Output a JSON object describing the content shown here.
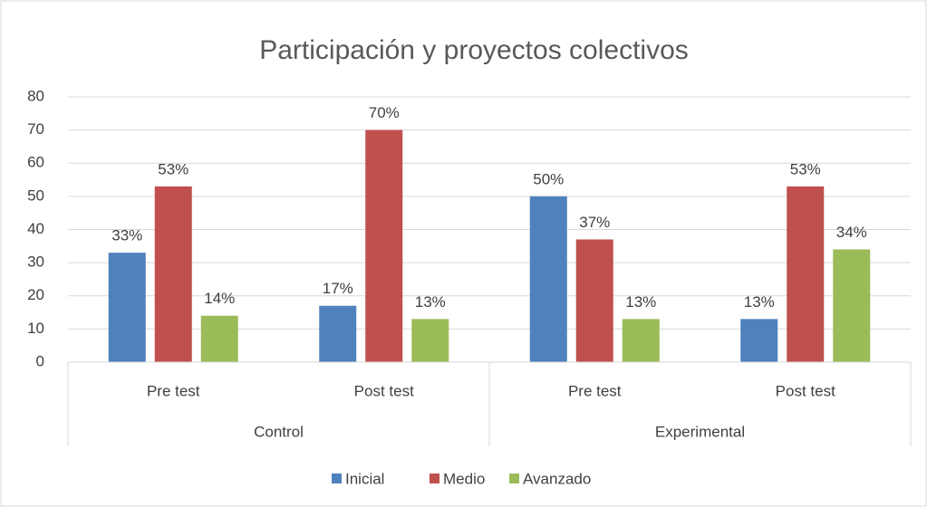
{
  "chart_data": {
    "type": "bar",
    "title": "Participación y proyectos colectivos",
    "categories": [
      "Pre test",
      "Post test",
      "Pre test",
      "Post test"
    ],
    "groups": [
      "Control",
      "Experimental"
    ],
    "series": [
      {
        "name": "Inicial",
        "color": "#4f81bd",
        "values": [
          33,
          17,
          50,
          13
        ],
        "value_labels": [
          "33%",
          "17%",
          "50%",
          "13%"
        ]
      },
      {
        "name": "Medio",
        "color": "#c0504d",
        "values": [
          53,
          70,
          37,
          53
        ],
        "value_labels": [
          "53%",
          "70%",
          "37%",
          "53%"
        ]
      },
      {
        "name": "Avanzado",
        "color": "#9bbb59",
        "values": [
          14,
          13,
          13,
          34
        ],
        "value_labels": [
          "14%",
          "13%",
          "13%",
          "34%"
        ]
      }
    ],
    "ylim": [
      0,
      80
    ],
    "yticks": [
      0,
      10,
      20,
      30,
      40,
      50,
      60,
      70,
      80
    ],
    "grid": true,
    "legend": "bottom"
  }
}
